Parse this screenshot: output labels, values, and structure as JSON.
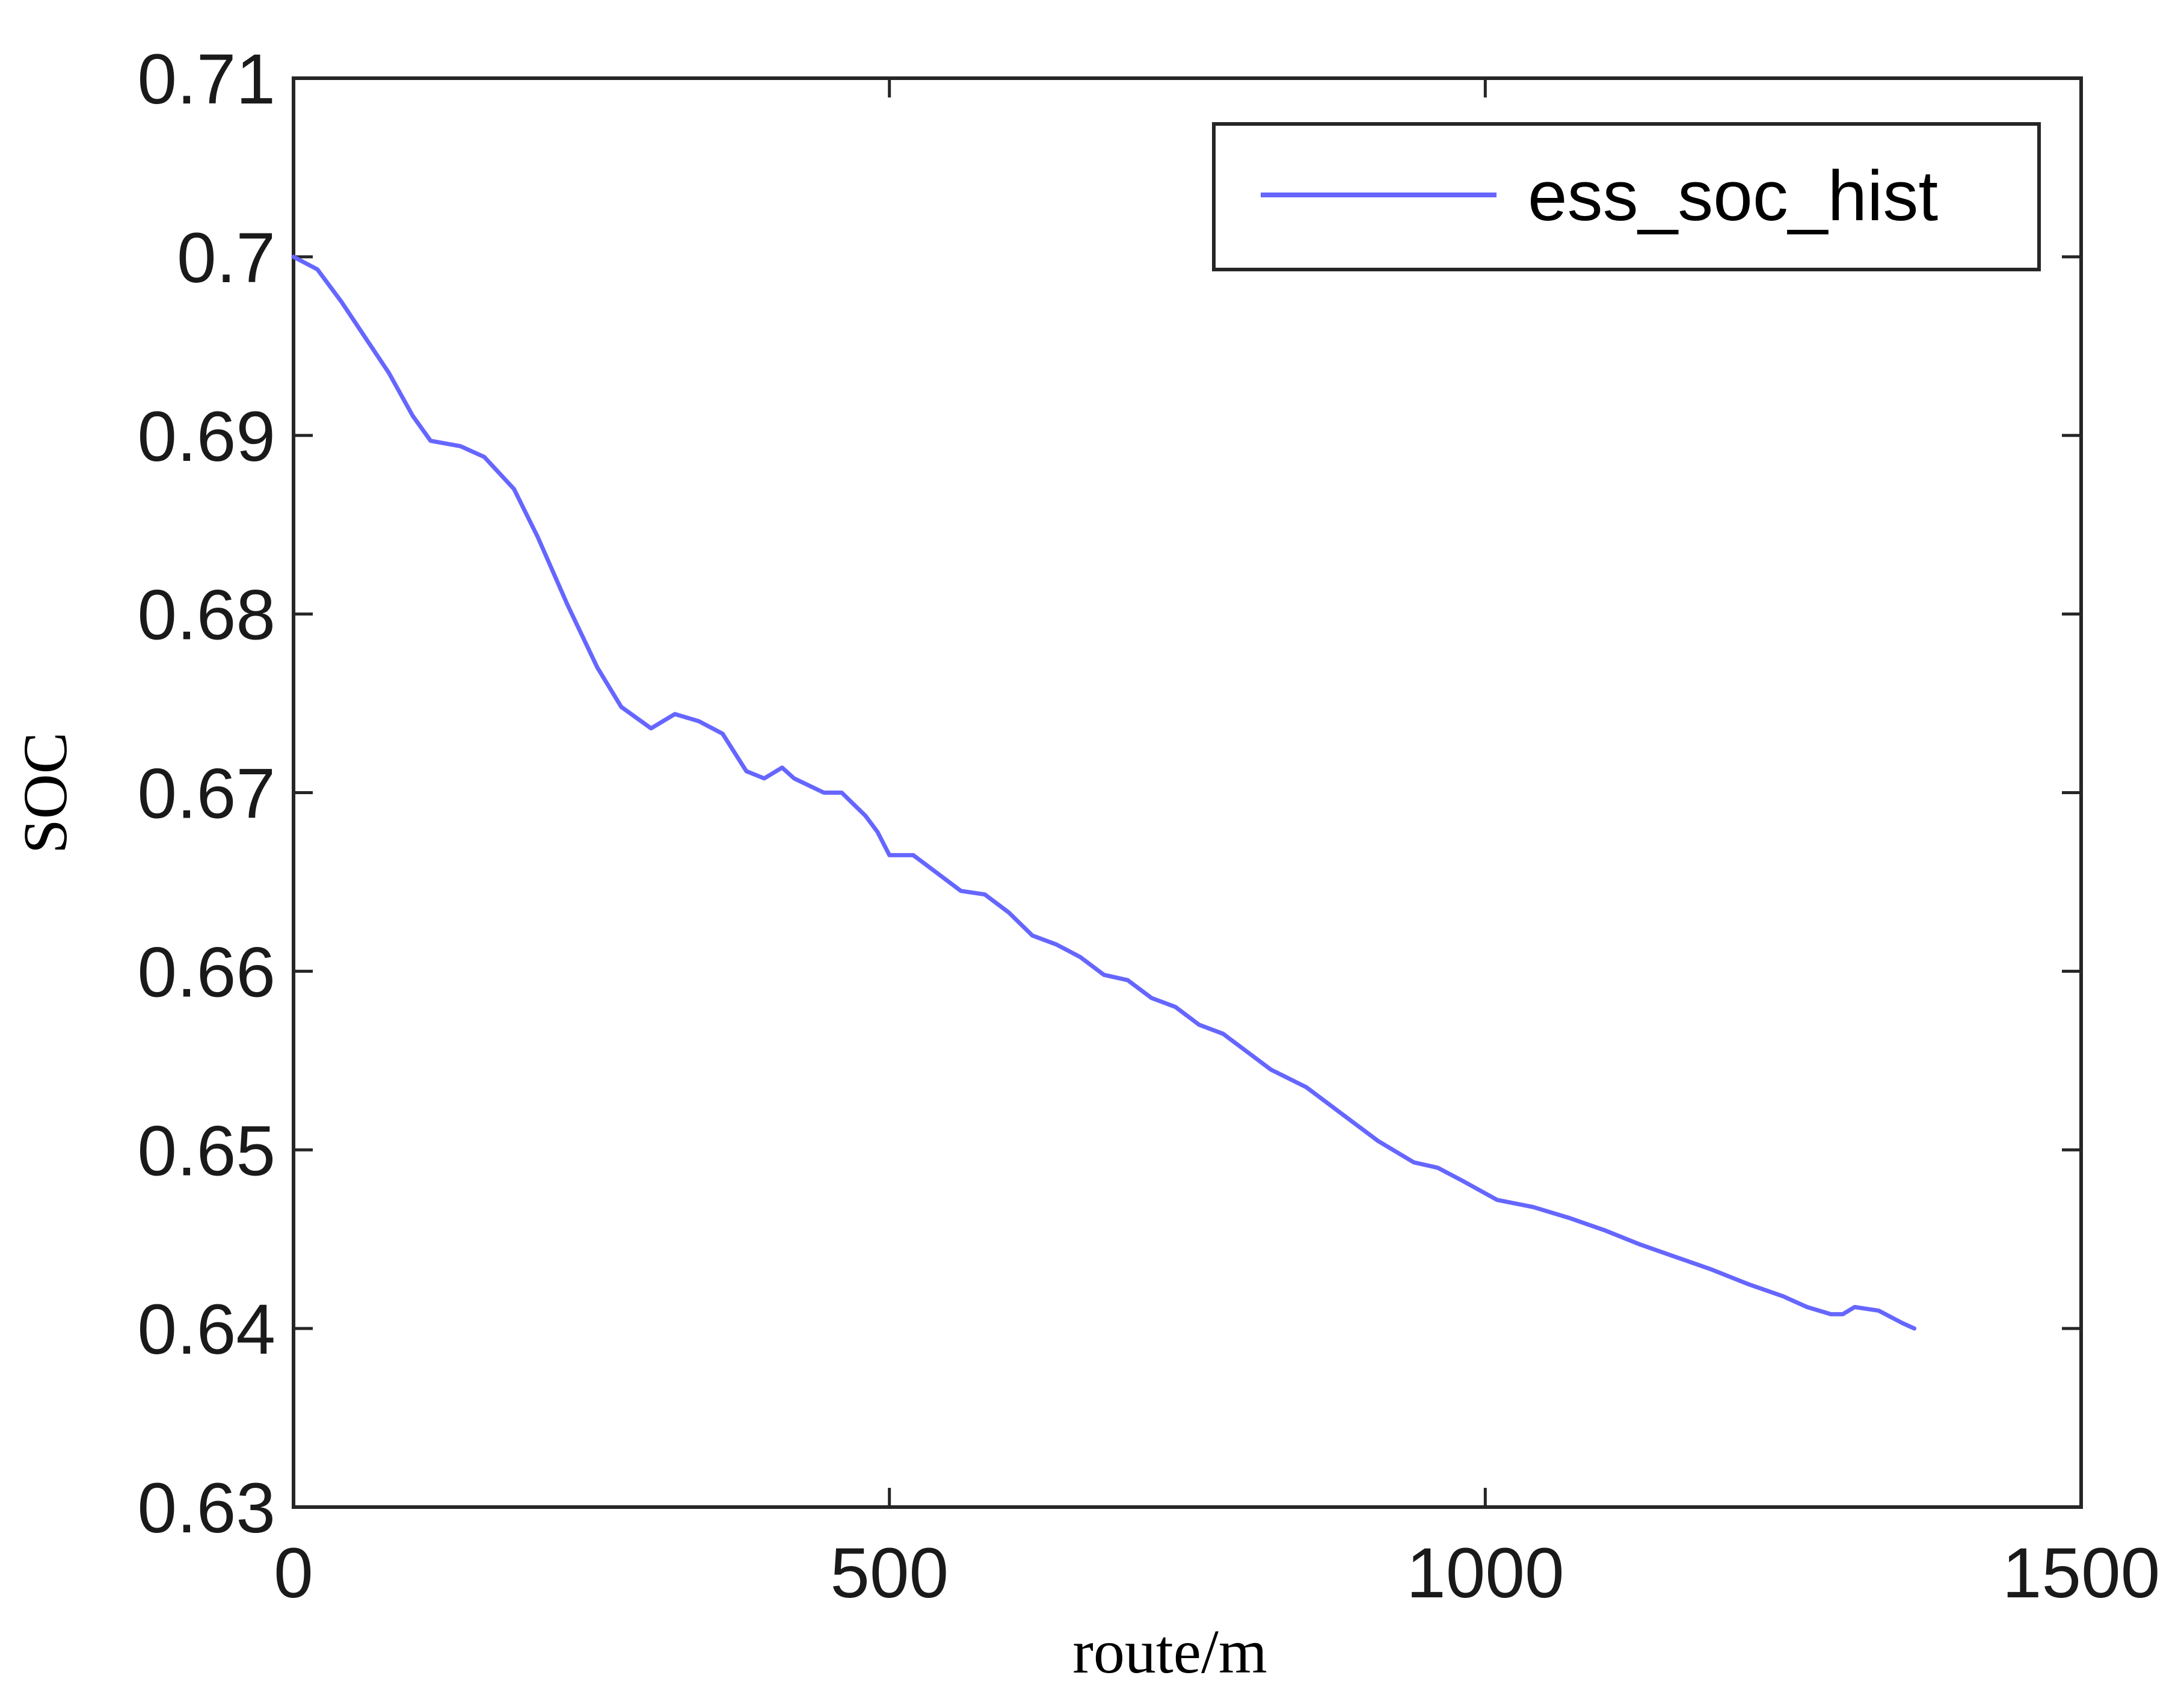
{
  "chart_data": {
    "type": "line",
    "title": "",
    "xlabel": "route/m",
    "ylabel": "SOC",
    "xlim": [
      0,
      1500
    ],
    "ylim": [
      0.63,
      0.71
    ],
    "xticks": [
      0,
      500,
      1000,
      1500
    ],
    "xtick_labels": [
      "0",
      "500",
      "1000",
      "1500"
    ],
    "yticks": [
      0.63,
      0.64,
      0.65,
      0.66,
      0.67,
      0.68,
      0.69,
      0.7,
      0.71
    ],
    "ytick_labels": [
      "0.63",
      "0.64",
      "0.65",
      "0.66",
      "0.67",
      "0.68",
      "0.69",
      "0.7",
      "0.71"
    ],
    "grid": false,
    "legend_position": "top-right",
    "series": [
      {
        "name": "ess_soc_hist",
        "color": "#6666ff",
        "x": [
          0,
          20,
          40,
          60,
          80,
          100,
          115,
          140,
          160,
          185,
          205,
          230,
          255,
          275,
          300,
          320,
          340,
          360,
          380,
          395,
          410,
          420,
          445,
          460,
          480,
          490,
          500,
          520,
          540,
          560,
          580,
          600,
          620,
          640,
          660,
          680,
          700,
          720,
          740,
          760,
          780,
          800,
          820,
          850,
          880,
          910,
          940,
          960,
          980,
          1010,
          1040,
          1070,
          1100,
          1130,
          1160,
          1190,
          1220,
          1250,
          1270,
          1290,
          1300,
          1310,
          1330,
          1350,
          1360
        ],
        "y": [
          0.7,
          0.6993,
          0.6975,
          0.6955,
          0.6935,
          0.6911,
          0.6897,
          0.6894,
          0.6888,
          0.687,
          0.6843,
          0.6805,
          0.677,
          0.6748,
          0.6736,
          0.6744,
          0.674,
          0.6733,
          0.6712,
          0.6708,
          0.6714,
          0.6708,
          0.67,
          0.67,
          0.6687,
          0.6678,
          0.6665,
          0.6665,
          0.6655,
          0.6645,
          0.6643,
          0.6633,
          0.662,
          0.6615,
          0.6608,
          0.6598,
          0.6595,
          0.6585,
          0.658,
          0.657,
          0.6565,
          0.6555,
          0.6545,
          0.6535,
          0.652,
          0.6505,
          0.6493,
          0.649,
          0.6483,
          0.6472,
          0.6468,
          0.6462,
          0.6455,
          0.6447,
          0.644,
          0.6433,
          0.6425,
          0.6418,
          0.6412,
          0.6408,
          0.6408,
          0.6412,
          0.641,
          0.6403,
          0.64
        ]
      }
    ]
  }
}
